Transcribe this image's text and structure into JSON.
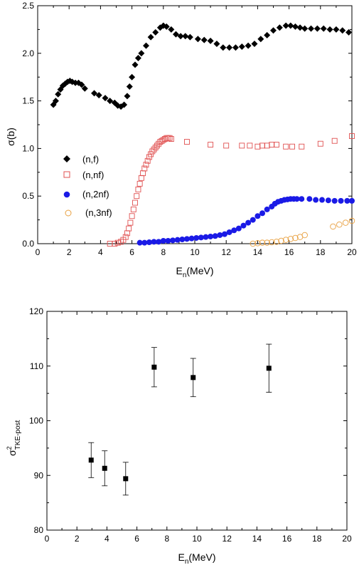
{
  "chart_data": [
    {
      "type": "scatter",
      "xlabel": "E",
      "xlabel_sub": "n",
      "xlabel_unit": "(MeV)",
      "ylabel": "σ(b)",
      "xlim": [
        0,
        20
      ],
      "ylim": [
        0,
        2.5
      ],
      "xticks": [
        0,
        2,
        4,
        6,
        8,
        10,
        12,
        14,
        16,
        18,
        20
      ],
      "yticks": [
        0.0,
        0.5,
        1.0,
        1.5,
        2.0,
        2.5
      ],
      "ytick_labels": [
        "0.0",
        "0.5",
        "1.0",
        "1.5",
        "2.0",
        "2.5"
      ],
      "legend_position": "left",
      "series": [
        {
          "name": "(n,f)",
          "marker": "diamond",
          "color": "#000000",
          "x": [
            1.0,
            1.15,
            1.3,
            1.45,
            1.6,
            1.75,
            1.9,
            2.05,
            2.2,
            2.4,
            2.6,
            2.8,
            3.0,
            3.6,
            3.9,
            4.3,
            4.6,
            4.9,
            5.1,
            5.3,
            5.5,
            5.7,
            5.85,
            6.0,
            6.2,
            6.4,
            6.6,
            6.9,
            7.2,
            7.5,
            7.8,
            8.0,
            8.2,
            8.5,
            8.8,
            9.1,
            9.4,
            9.7,
            10.2,
            10.6,
            11.0,
            11.4,
            11.8,
            12.2,
            12.6,
            13.0,
            13.4,
            13.8,
            14.2,
            14.6,
            15.0,
            15.4,
            15.8,
            16.1,
            16.4,
            16.7,
            17.0,
            17.4,
            17.8,
            18.2,
            18.6,
            19.0,
            19.4,
            19.8
          ],
          "y": [
            1.46,
            1.5,
            1.57,
            1.62,
            1.66,
            1.68,
            1.7,
            1.71,
            1.7,
            1.69,
            1.69,
            1.67,
            1.63,
            1.58,
            1.56,
            1.53,
            1.5,
            1.48,
            1.45,
            1.44,
            1.46,
            1.55,
            1.65,
            1.75,
            1.88,
            1.95,
            2.0,
            2.08,
            2.17,
            2.22,
            2.27,
            2.29,
            2.28,
            2.25,
            2.2,
            2.18,
            2.18,
            2.17,
            2.15,
            2.14,
            2.13,
            2.1,
            2.06,
            2.06,
            2.06,
            2.07,
            2.08,
            2.1,
            2.15,
            2.19,
            2.24,
            2.27,
            2.29,
            2.29,
            2.28,
            2.27,
            2.26,
            2.26,
            2.26,
            2.26,
            2.25,
            2.25,
            2.24,
            2.22
          ]
        },
        {
          "name": "(n,nf)",
          "marker": "open-square",
          "color": "#e05050",
          "x": [
            4.6,
            4.9,
            5.1,
            5.3,
            5.45,
            5.6,
            5.7,
            5.8,
            5.9,
            6.0,
            6.1,
            6.2,
            6.3,
            6.4,
            6.5,
            6.6,
            6.7,
            6.8,
            6.9,
            7.0,
            7.1,
            7.2,
            7.3,
            7.4,
            7.5,
            7.6,
            7.7,
            7.8,
            7.9,
            8.0,
            8.1,
            8.2,
            8.3,
            8.4,
            8.5,
            9.5,
            11.0,
            12.0,
            13.0,
            13.5,
            14.0,
            14.3,
            14.6,
            14.9,
            15.2,
            15.8,
            16.2,
            16.8,
            18.0,
            18.9,
            20.0
          ],
          "y": [
            0.0,
            0.0,
            0.01,
            0.02,
            0.04,
            0.07,
            0.11,
            0.16,
            0.22,
            0.29,
            0.36,
            0.43,
            0.5,
            0.57,
            0.63,
            0.69,
            0.74,
            0.79,
            0.83,
            0.87,
            0.91,
            0.94,
            0.97,
            0.99,
            1.01,
            1.03,
            1.05,
            1.07,
            1.08,
            1.09,
            1.1,
            1.11,
            1.11,
            1.11,
            1.1,
            1.07,
            1.04,
            1.03,
            1.03,
            1.03,
            1.02,
            1.03,
            1.03,
            1.04,
            1.04,
            1.02,
            1.02,
            1.02,
            1.05,
            1.08,
            1.13
          ]
        },
        {
          "name": "(n,2nf)",
          "marker": "filled-circle",
          "color": "#1a1ae6",
          "x": [
            6.5,
            6.8,
            7.1,
            7.4,
            7.7,
            8.0,
            8.3,
            8.6,
            8.9,
            9.2,
            9.5,
            9.8,
            10.1,
            10.4,
            10.7,
            11.0,
            11.3,
            11.6,
            11.9,
            12.2,
            12.5,
            12.8,
            13.1,
            13.4,
            13.7,
            14.0,
            14.3,
            14.6,
            14.9,
            15.1,
            15.3,
            15.5,
            15.7,
            15.9,
            16.1,
            16.3,
            16.5,
            16.8,
            17.3,
            17.7,
            18.1,
            18.5,
            18.9,
            19.3,
            19.7,
            20.0
          ],
          "y": [
            0.01,
            0.01,
            0.015,
            0.02,
            0.02,
            0.03,
            0.03,
            0.035,
            0.04,
            0.045,
            0.05,
            0.055,
            0.06,
            0.065,
            0.07,
            0.075,
            0.08,
            0.09,
            0.1,
            0.12,
            0.14,
            0.16,
            0.19,
            0.22,
            0.25,
            0.29,
            0.32,
            0.36,
            0.39,
            0.42,
            0.44,
            0.45,
            0.46,
            0.465,
            0.47,
            0.47,
            0.47,
            0.47,
            0.47,
            0.46,
            0.46,
            0.455,
            0.45,
            0.45,
            0.45,
            0.45
          ]
        },
        {
          "name": "(n,3nf)",
          "marker": "open-circle",
          "color": "#e8a040",
          "x": [
            13.7,
            14.0,
            14.3,
            14.6,
            14.9,
            15.2,
            15.5,
            15.8,
            16.1,
            16.4,
            16.7,
            17.0,
            18.8,
            19.2,
            19.6,
            20.0
          ],
          "y": [
            0.0,
            0.005,
            0.01,
            0.01,
            0.015,
            0.02,
            0.03,
            0.04,
            0.05,
            0.06,
            0.07,
            0.09,
            0.18,
            0.2,
            0.22,
            0.24
          ]
        }
      ]
    },
    {
      "type": "scatter",
      "xlabel": "E",
      "xlabel_sub": "n",
      "xlabel_unit": "(MeV)",
      "ylabel": "σ",
      "ylabel_sup": "2",
      "ylabel_sub": "TKE-post",
      "xlim": [
        0,
        20
      ],
      "ylim": [
        80,
        120
      ],
      "xticks": [
        0,
        2,
        4,
        6,
        8,
        10,
        12,
        14,
        16,
        18,
        20
      ],
      "yticks": [
        80,
        90,
        100,
        110,
        120
      ],
      "series": [
        {
          "marker": "filled-square",
          "color": "#000000",
          "x": [
            2.95,
            3.85,
            5.25,
            7.15,
            9.75,
            14.8
          ],
          "y": [
            92.8,
            91.3,
            89.4,
            109.8,
            107.9,
            109.6
          ],
          "yerr": [
            3.2,
            3.2,
            3.0,
            3.6,
            3.5,
            4.4
          ]
        }
      ]
    }
  ]
}
